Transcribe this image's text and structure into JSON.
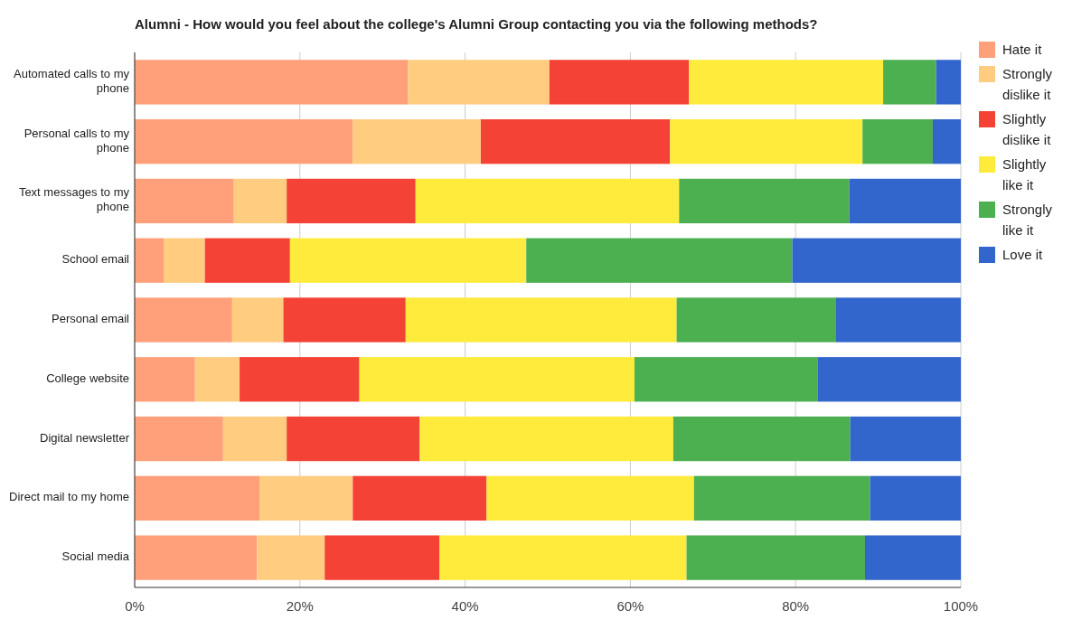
{
  "chart_data": {
    "type": "bar",
    "orientation": "horizontal",
    "stacked": true,
    "title": "Alumni - How would you feel about the college's Alumni Group contacting you via the following methods?",
    "categories": [
      "Automated calls to my phone",
      "Personal calls to my phone",
      "Text messages to my phone",
      "School email",
      "Personal email",
      "College website",
      "Digital newsletter",
      "Direct mail to my home",
      "Social media"
    ],
    "series": [
      {
        "name": "Hate it",
        "color": "#ffa07a",
        "values": [
          33.1,
          26.4,
          12.0,
          3.5,
          11.8,
          7.3,
          10.7,
          15.1,
          14.8
        ]
      },
      {
        "name": "Strongly dislike it",
        "color": "#ffcc80",
        "values": [
          17.1,
          15.5,
          6.4,
          5.0,
          6.2,
          5.4,
          7.7,
          11.3,
          8.2
        ]
      },
      {
        "name": "Slightly dislike it",
        "color": "#f44336",
        "values": [
          16.9,
          22.9,
          15.6,
          10.3,
          14.8,
          14.5,
          16.1,
          16.2,
          13.9
        ]
      },
      {
        "name": "Slightly like it",
        "color": "#ffeb3b",
        "values": [
          23.5,
          23.3,
          31.9,
          28.6,
          32.8,
          33.3,
          30.7,
          25.1,
          29.9
        ]
      },
      {
        "name": "Strongly like it",
        "color": "#4caf50",
        "values": [
          6.4,
          8.5,
          20.6,
          32.2,
          19.3,
          22.2,
          21.4,
          21.3,
          21.6
        ]
      },
      {
        "name": "Love it",
        "color": "#3366cc",
        "values": [
          3.0,
          3.4,
          13.5,
          20.4,
          15.1,
          17.3,
          13.4,
          11.0,
          11.6
        ]
      }
    ],
    "xlim": [
      0,
      100
    ],
    "xticks": [
      {
        "value": 0,
        "label": "0%"
      },
      {
        "value": 20,
        "label": "20%"
      },
      {
        "value": 40,
        "label": "40%"
      },
      {
        "value": 60,
        "label": "60%"
      },
      {
        "value": 80,
        "label": "80%"
      },
      {
        "value": 100,
        "label": "100%"
      }
    ],
    "grid": "x",
    "legend": "right"
  }
}
